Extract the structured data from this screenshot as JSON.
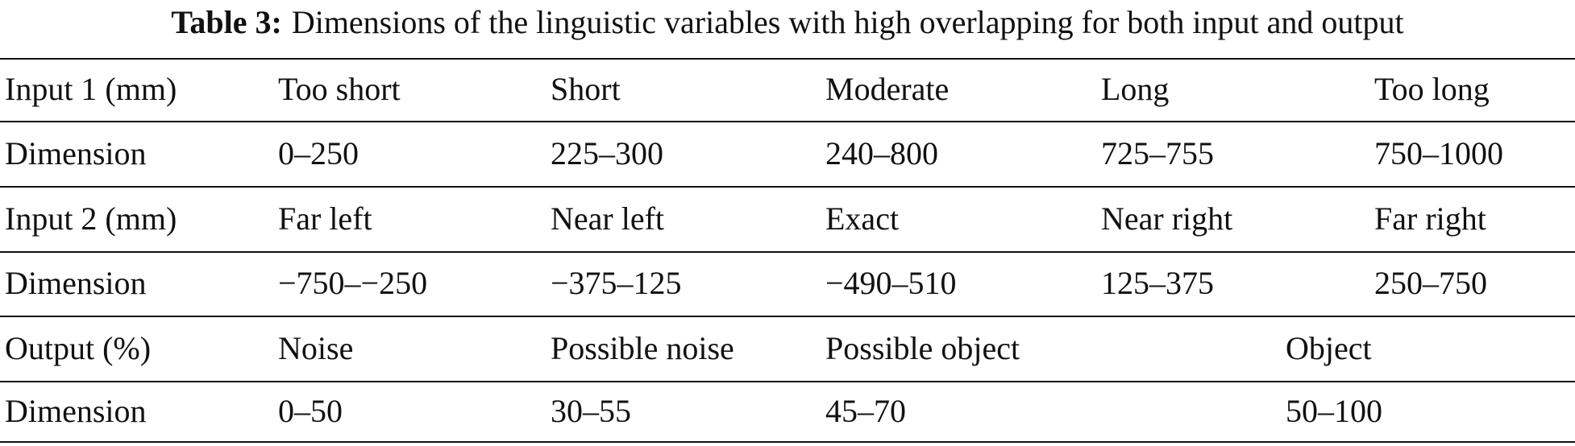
{
  "caption": {
    "label": "Table 3:",
    "text": "Dimensions of the linguistic variables with high overlapping for both input and output"
  },
  "table": {
    "rows": [
      [
        "Input 1 (mm)",
        "Too short",
        "Short",
        "Moderate",
        "Long",
        "Too long"
      ],
      [
        "Dimension",
        "0–250",
        "225–300",
        "240–800",
        "725–755",
        "750–1000"
      ],
      [
        "Input 2 (mm)",
        "Far left",
        "Near left",
        "Exact",
        "Near right",
        "Far right"
      ],
      [
        "Dimension",
        "−750–−250",
        "−375–125",
        "−490–510",
        "125–375",
        "250–750"
      ],
      [
        "Output (%)",
        "Noise",
        "Possible noise",
        "Possible object",
        "Object"
      ],
      [
        "Dimension",
        "0–50",
        "30–55",
        "45–70",
        "50–100"
      ]
    ]
  }
}
